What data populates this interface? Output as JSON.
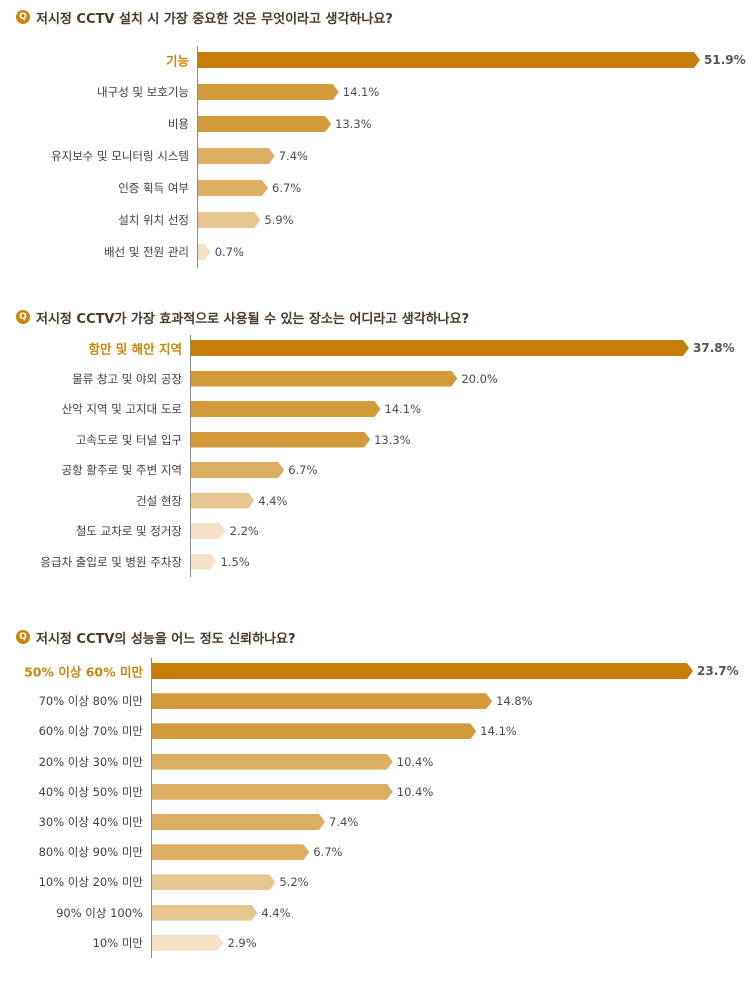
{
  "chart_data": [
    {
      "type": "bar",
      "title": "저시정 CCTV 설치 시 가장 중요한 것은 무엇이라고 생각하나요?",
      "categories": [
        "기능",
        "내구성 및 보호기능",
        "비용",
        "유지보수 및 모니터링 시스템",
        "인증 획득 여부",
        "설치 위치 선정",
        "배선 및 전원 관리"
      ],
      "values": [
        51.9,
        14.1,
        13.3,
        7.4,
        6.7,
        5.9,
        0.7
      ],
      "value_labels": [
        "51.9%",
        "14.1%",
        "13.3%",
        "7.4%",
        "6.7%",
        "5.9%",
        "0.7%"
      ],
      "xlabel": "",
      "ylabel": "",
      "xlim": [
        0,
        51.9
      ],
      "orientation": "horizontal",
      "grid": false,
      "legend": "none"
    },
    {
      "type": "bar",
      "title": "저시정 CCTV가 가장 효과적으로 사용될 수 있는 장소는 어디라고 생각하나요?",
      "categories": [
        "항만 및 해안 지역",
        "물류 창고 및 야외 공장",
        "산악 지역 및 고지대 도로",
        "고속도로 및 터널 입구",
        "공항 활주로 및 주변 지역",
        "건설 현장",
        "철도 교차로 및 정거장",
        "응급차 출입로 및 병원 주차장"
      ],
      "values": [
        37.8,
        20.0,
        14.1,
        13.3,
        6.7,
        4.4,
        2.2,
        1.5
      ],
      "value_labels": [
        "37.8%",
        "20.0%",
        "14.1%",
        "13.3%",
        "6.7%",
        "4.4%",
        "2.2%",
        "1.5%"
      ],
      "xlabel": "",
      "ylabel": "",
      "xlim": [
        0,
        37.8
      ],
      "orientation": "horizontal",
      "grid": false,
      "legend": "none"
    },
    {
      "type": "bar",
      "title": "저시정 CCTV의 성능을 어느 정도 신뢰하나요?",
      "categories": [
        "50% 이상 60% 미만",
        "70% 이상 80% 미만",
        "60% 이상 70% 미만",
        "20% 이상 30% 미만",
        "40% 이상 50% 미만",
        "30% 이상 40% 미만",
        "80% 이상 90% 미만",
        "10% 이상 20% 미만",
        "90% 이상 100%",
        "10% 미만"
      ],
      "values": [
        23.7,
        14.8,
        14.1,
        10.4,
        10.4,
        7.4,
        6.7,
        5.2,
        4.4,
        2.9
      ],
      "value_labels": [
        "23.7%",
        "14.8%",
        "14.1%",
        "10.4%",
        "10.4%",
        "7.4%",
        "6.7%",
        "5.2%",
        "4.4%",
        "2.9%"
      ],
      "xlabel": "",
      "ylabel": "",
      "xlim": [
        0,
        23.7
      ],
      "orientation": "horizontal",
      "grid": false,
      "legend": "none"
    }
  ],
  "question_badge": "Q",
  "colors": {
    "top_bar": "#c67d0a",
    "bar_dark": "#d39a3a",
    "bar_mid": "#dcae62",
    "bar_light": "#e7c690",
    "bar_pale": "#f3e2c6",
    "highlight_text": "#c8860f",
    "axis": "#8a8a8a"
  }
}
